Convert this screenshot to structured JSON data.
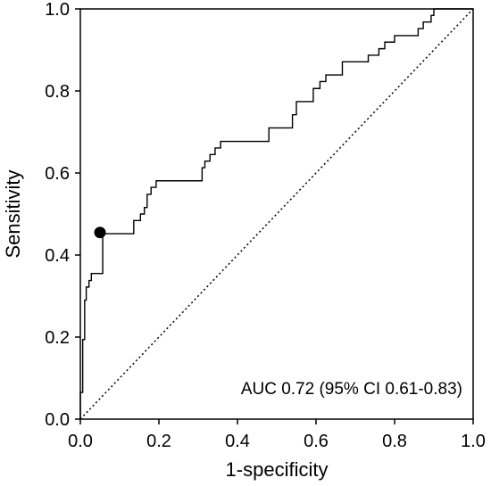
{
  "chart_data": {
    "type": "line",
    "title": "",
    "xlabel": "1-specificity",
    "ylabel": "Sensitivity",
    "xlim": [
      0,
      1
    ],
    "ylim": [
      0,
      1
    ],
    "x_ticks": [
      0.0,
      0.2,
      0.4,
      0.6,
      0.8,
      1.0
    ],
    "y_ticks": [
      0.0,
      0.2,
      0.4,
      0.6,
      0.8,
      1.0
    ],
    "x_tick_labels": [
      "0.0",
      "0.2",
      "0.4",
      "0.6",
      "0.8",
      "1.0"
    ],
    "y_tick_labels": [
      "0.0",
      "0.2",
      "0.4",
      "0.6",
      "0.8",
      "1.0"
    ],
    "grid": false,
    "annotation": "AUC 0.72 (95% CI 0.61-0.83)",
    "series": [
      {
        "style": "solid",
        "points": [
          [
            0.0,
            0.0
          ],
          [
            0.0,
            0.065
          ],
          [
            0.006,
            0.065
          ],
          [
            0.006,
            0.194
          ],
          [
            0.011,
            0.194
          ],
          [
            0.011,
            0.29
          ],
          [
            0.015,
            0.29
          ],
          [
            0.015,
            0.322
          ],
          [
            0.022,
            0.322
          ],
          [
            0.022,
            0.338
          ],
          [
            0.028,
            0.338
          ],
          [
            0.028,
            0.355
          ],
          [
            0.057,
            0.355
          ],
          [
            0.057,
            0.452
          ],
          [
            0.136,
            0.452
          ],
          [
            0.136,
            0.484
          ],
          [
            0.153,
            0.484
          ],
          [
            0.153,
            0.5
          ],
          [
            0.163,
            0.5
          ],
          [
            0.163,
            0.516
          ],
          [
            0.17,
            0.516
          ],
          [
            0.17,
            0.548
          ],
          [
            0.18,
            0.548
          ],
          [
            0.18,
            0.565
          ],
          [
            0.193,
            0.565
          ],
          [
            0.193,
            0.581
          ],
          [
            0.31,
            0.581
          ],
          [
            0.31,
            0.613
          ],
          [
            0.317,
            0.613
          ],
          [
            0.317,
            0.629
          ],
          [
            0.33,
            0.629
          ],
          [
            0.33,
            0.645
          ],
          [
            0.343,
            0.645
          ],
          [
            0.343,
            0.661
          ],
          [
            0.357,
            0.661
          ],
          [
            0.357,
            0.677
          ],
          [
            0.48,
            0.677
          ],
          [
            0.48,
            0.71
          ],
          [
            0.54,
            0.71
          ],
          [
            0.54,
            0.742
          ],
          [
            0.55,
            0.742
          ],
          [
            0.55,
            0.774
          ],
          [
            0.593,
            0.774
          ],
          [
            0.593,
            0.806
          ],
          [
            0.61,
            0.806
          ],
          [
            0.61,
            0.823
          ],
          [
            0.625,
            0.823
          ],
          [
            0.625,
            0.839
          ],
          [
            0.667,
            0.839
          ],
          [
            0.667,
            0.871
          ],
          [
            0.733,
            0.871
          ],
          [
            0.733,
            0.887
          ],
          [
            0.76,
            0.887
          ],
          [
            0.76,
            0.903
          ],
          [
            0.775,
            0.903
          ],
          [
            0.775,
            0.919
          ],
          [
            0.8,
            0.919
          ],
          [
            0.8,
            0.935
          ],
          [
            0.86,
            0.935
          ],
          [
            0.86,
            0.952
          ],
          [
            0.873,
            0.952
          ],
          [
            0.873,
            0.968
          ],
          [
            0.893,
            0.968
          ],
          [
            0.893,
            0.984
          ],
          [
            0.9,
            0.984
          ],
          [
            0.9,
            1.0
          ],
          [
            1.0,
            1.0
          ]
        ]
      },
      {
        "style": "dotted",
        "points": [
          [
            0.0,
            0.0
          ],
          [
            1.0,
            1.0
          ]
        ]
      }
    ],
    "markers": [
      {
        "x": 0.05,
        "y": 0.455
      }
    ]
  }
}
